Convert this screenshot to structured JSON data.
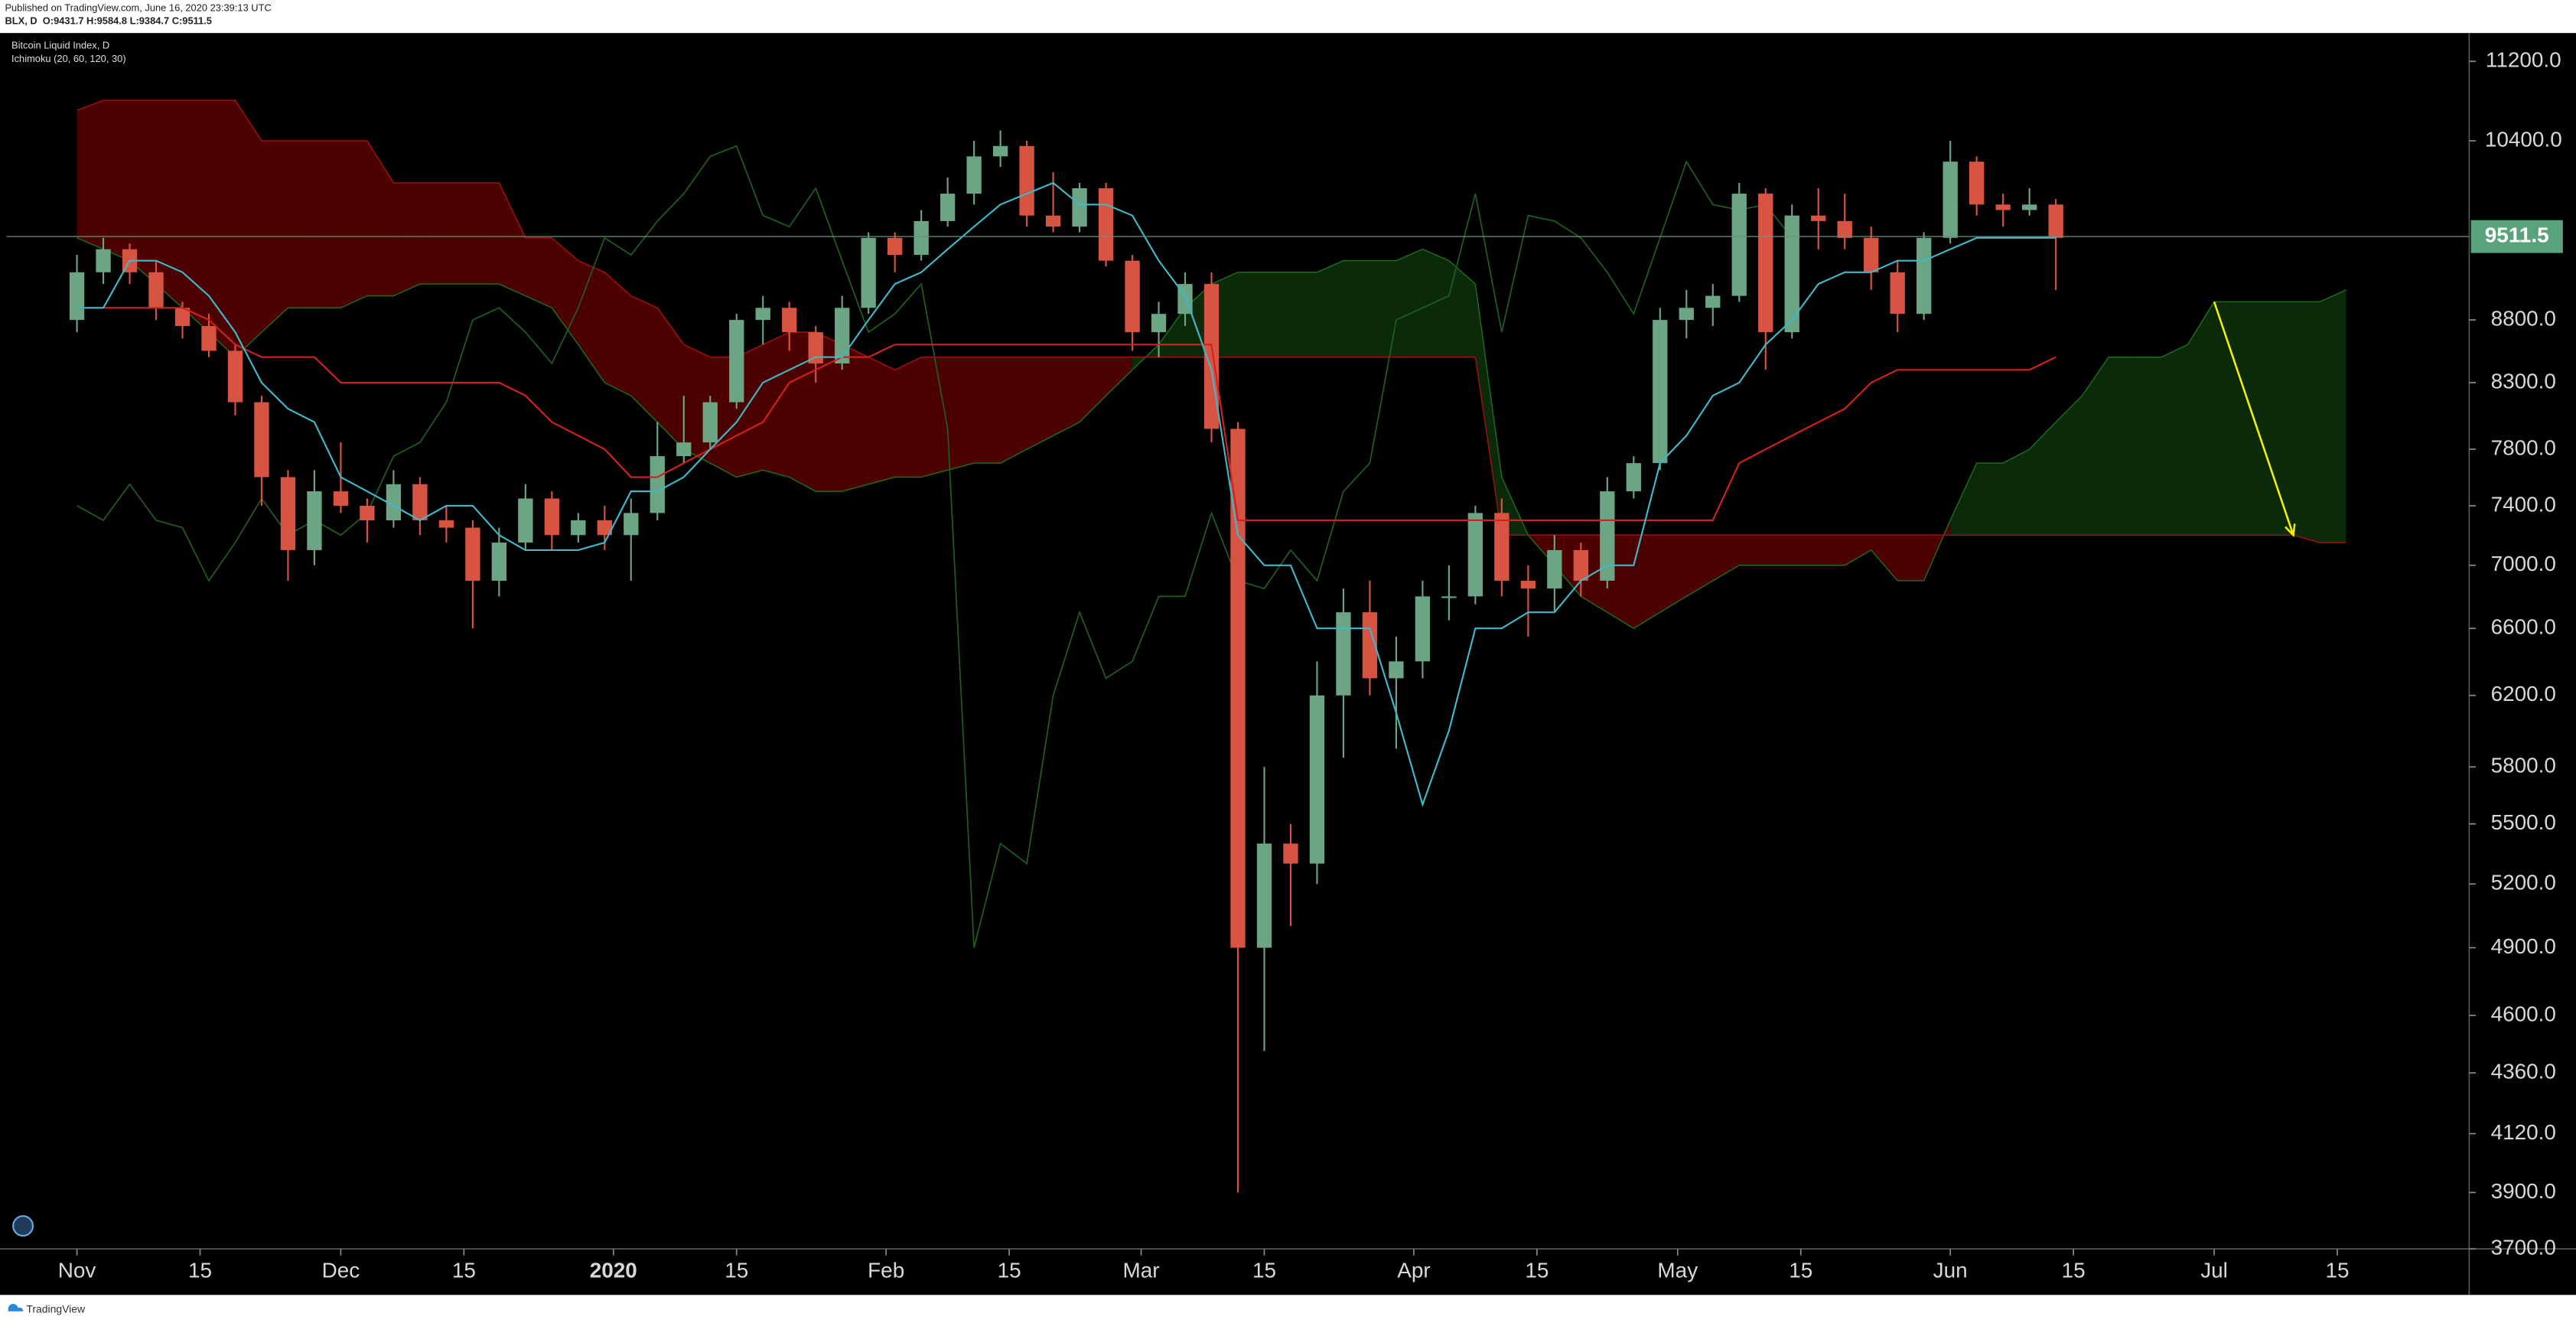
{
  "header": {
    "published": "Published on TradingView.com, June 16, 2020 23:39:13 UTC",
    "symbol_line": "BLX, D  O:9431.7 H:9584.8 L:9384.7 C:9511.5"
  },
  "footer": {
    "brand": "TradingView"
  },
  "chart_data": {
    "type": "candlestick",
    "title": "Bitcoin Liquid Index, D",
    "subtitle": "Ichimoku (20, 60, 120, 30)",
    "log": true,
    "x": [
      "2019-11-01",
      "2019-11-04",
      "2019-11-07",
      "2019-11-10",
      "2019-11-13",
      "2019-11-16",
      "2019-11-19",
      "2019-11-22",
      "2019-11-25",
      "2019-11-28",
      "2019-12-01",
      "2019-12-04",
      "2019-12-07",
      "2019-12-10",
      "2019-12-13",
      "2019-12-16",
      "2019-12-19",
      "2019-12-22",
      "2019-12-25",
      "2019-12-28",
      "2019-12-31",
      "2020-01-03",
      "2020-01-06",
      "2020-01-09",
      "2020-01-12",
      "2020-01-15",
      "2020-01-18",
      "2020-01-21",
      "2020-01-24",
      "2020-01-27",
      "2020-01-30",
      "2020-02-02",
      "2020-02-05",
      "2020-02-08",
      "2020-02-11",
      "2020-02-14",
      "2020-02-17",
      "2020-02-20",
      "2020-02-23",
      "2020-02-26",
      "2020-02-29",
      "2020-03-03",
      "2020-03-06",
      "2020-03-09",
      "2020-03-12",
      "2020-03-15",
      "2020-03-18",
      "2020-03-21",
      "2020-03-24",
      "2020-03-27",
      "2020-03-30",
      "2020-04-02",
      "2020-04-05",
      "2020-04-08",
      "2020-04-11",
      "2020-04-14",
      "2020-04-17",
      "2020-04-20",
      "2020-04-23",
      "2020-04-26",
      "2020-04-29",
      "2020-05-02",
      "2020-05-05",
      "2020-05-08",
      "2020-05-11",
      "2020-05-14",
      "2020-05-17",
      "2020-05-20",
      "2020-05-23",
      "2020-05-26",
      "2020-05-29",
      "2020-06-01",
      "2020-06-04",
      "2020-06-07",
      "2020-06-10",
      "2020-06-13",
      "2020-06-16",
      "2020-06-19",
      "2020-06-22",
      "2020-06-25",
      "2020-06-28",
      "2020-07-01",
      "2020-07-04",
      "2020-07-07",
      "2020-07-10",
      "2020-07-13",
      "2020-07-16"
    ],
    "open": [
      8800,
      9200,
      9400,
      9200,
      8900,
      8750,
      8550,
      8150,
      7600,
      7100,
      7500,
      7400,
      7300,
      7550,
      7300,
      7250,
      6900,
      7150,
      7450,
      7200,
      7300,
      7200,
      7350,
      7750,
      7850,
      8150,
      8800,
      8900,
      8700,
      8450,
      8900,
      9500,
      9350,
      9650,
      9900,
      10250,
      10350,
      9700,
      9600,
      9950,
      9300,
      8700,
      8850,
      9100,
      7950,
      4900,
      5400,
      5300,
      6200,
      6700,
      6300,
      6400,
      6800,
      6800,
      7350,
      6900,
      6850,
      7100,
      6900,
      7500,
      7700,
      8800,
      8900,
      9000,
      9900,
      8700,
      9700,
      9650,
      9500,
      9200,
      8850,
      9500,
      10200,
      9800,
      9750,
      9800,
      null,
      null,
      null,
      null,
      null,
      null,
      null,
      null,
      null,
      null,
      null
    ],
    "high": [
      9350,
      9500,
      9450,
      9300,
      8950,
      8850,
      8600,
      8200,
      7650,
      7650,
      7850,
      7450,
      7650,
      7600,
      7400,
      7300,
      7250,
      7550,
      7500,
      7350,
      7400,
      7450,
      8000,
      8200,
      8200,
      8850,
      9000,
      8950,
      8750,
      9000,
      9550,
      9550,
      9750,
      10050,
      10400,
      10500,
      10400,
      10100,
      10000,
      10000,
      9350,
      8950,
      9200,
      9200,
      8000,
      5800,
      5500,
      6400,
      6850,
      6900,
      6550,
      6900,
      7000,
      7400,
      7450,
      7000,
      7200,
      7150,
      7600,
      7750,
      8900,
      9050,
      9100,
      10000,
      9950,
      9800,
      9950,
      9900,
      9600,
      9300,
      9550,
      10400,
      10250,
      9900,
      9950,
      9850,
      null,
      null,
      null,
      null,
      null,
      null,
      null,
      null,
      null,
      null,
      null
    ],
    "low": [
      8700,
      9100,
      9100,
      8800,
      8650,
      8500,
      8050,
      7400,
      6900,
      7000,
      7350,
      7150,
      7250,
      7200,
      7150,
      6600,
      6800,
      7100,
      7100,
      7150,
      7100,
      6900,
      7300,
      7700,
      7800,
      8100,
      8600,
      8550,
      8300,
      8400,
      8850,
      9200,
      9300,
      9600,
      9800,
      10150,
      9600,
      9550,
      9550,
      9250,
      8550,
      8500,
      8750,
      7850,
      3900,
      4450,
      5000,
      5200,
      5850,
      6200,
      5900,
      6300,
      6650,
      6750,
      6800,
      6550,
      6700,
      6800,
      6850,
      7450,
      7650,
      8650,
      8750,
      8950,
      8400,
      8650,
      9400,
      9400,
      9050,
      8700,
      8800,
      9450,
      9700,
      9600,
      9700,
      9050,
      null,
      null,
      null,
      null,
      null,
      null,
      null,
      null,
      null,
      null,
      null
    ],
    "close": [
      9200,
      9400,
      9200,
      8900,
      8750,
      8550,
      8150,
      7600,
      7100,
      7500,
      7400,
      7300,
      7550,
      7300,
      7250,
      6900,
      7150,
      7450,
      7200,
      7300,
      7200,
      7350,
      7750,
      7850,
      8150,
      8800,
      8900,
      8700,
      8450,
      8900,
      9500,
      9350,
      9650,
      9900,
      10250,
      10350,
      9700,
      9600,
      9950,
      9300,
      8700,
      8850,
      9100,
      7950,
      4900,
      5400,
      5300,
      6200,
      6700,
      6300,
      6400,
      6800,
      6800,
      7350,
      6900,
      6850,
      7100,
      6900,
      7500,
      7700,
      8800,
      8900,
      9000,
      9900,
      8700,
      9700,
      9650,
      9500,
      9200,
      8850,
      9500,
      10200,
      9800,
      9750,
      9800,
      9500,
      null,
      null,
      null,
      null,
      null,
      null,
      null,
      null,
      null,
      null,
      null
    ],
    "tenkan": [
      8900,
      8900,
      9300,
      9300,
      9200,
      9000,
      8700,
      8300,
      8100,
      8000,
      7600,
      7500,
      7400,
      7300,
      7400,
      7400,
      7200,
      7100,
      7100,
      7100,
      7150,
      7500,
      7500,
      7600,
      7800,
      8000,
      8300,
      8400,
      8500,
      8500,
      8800,
      9100,
      9200,
      9400,
      9600,
      9800,
      9900,
      10000,
      9800,
      9800,
      9700,
      9300,
      9000,
      8400,
      7200,
      7000,
      7000,
      6600,
      6600,
      6600,
      6100,
      5600,
      6000,
      6600,
      6600,
      6700,
      6700,
      6900,
      7000,
      7000,
      7700,
      7900,
      8200,
      8300,
      8600,
      8800,
      9100,
      9200,
      9200,
      9300,
      9300,
      9400,
      9500,
      9500,
      9500,
      9500,
      null,
      null,
      null,
      null,
      null,
      null,
      null,
      null,
      null,
      null,
      null
    ],
    "kijun": [
      8900,
      8900,
      8900,
      8900,
      8900,
      8800,
      8600,
      8500,
      8500,
      8500,
      8300,
      8300,
      8300,
      8300,
      8300,
      8300,
      8300,
      8200,
      8000,
      7900,
      7800,
      7600,
      7600,
      7700,
      7800,
      7900,
      8000,
      8300,
      8400,
      8500,
      8500,
      8600,
      8600,
      8600,
      8600,
      8600,
      8600,
      8600,
      8600,
      8600,
      8600,
      8600,
      8600,
      8600,
      7300,
      7300,
      7300,
      7300,
      7300,
      7300,
      7300,
      7300,
      7300,
      7300,
      7300,
      7300,
      7300,
      7300,
      7300,
      7300,
      7300,
      7300,
      7300,
      7700,
      7800,
      7900,
      8000,
      8100,
      8300,
      8400,
      8400,
      8400,
      8400,
      8400,
      8400,
      8500,
      null,
      null,
      null,
      null,
      null,
      null,
      null,
      null,
      null,
      null,
      null
    ],
    "lagging": [
      7400,
      7300,
      7550,
      7300,
      7250,
      6900,
      7150,
      7450,
      7200,
      7300,
      7200,
      7350,
      7750,
      7850,
      8150,
      8800,
      8900,
      8700,
      8450,
      8900,
      9500,
      9350,
      9650,
      9900,
      10250,
      10350,
      9700,
      9600,
      9950,
      9300,
      8700,
      8850,
      9100,
      7950,
      4900,
      5400,
      5300,
      6200,
      6700,
      6300,
      6400,
      6800,
      6800,
      7350,
      6900,
      6850,
      7100,
      6900,
      7500,
      7700,
      8800,
      8900,
      9000,
      9900,
      8700,
      9700,
      9650,
      9500,
      9200,
      8850,
      9500,
      10200,
      9800,
      9750,
      9800,
      9500,
      null,
      null,
      null,
      null,
      null,
      null,
      null,
      null,
      null,
      null,
      null,
      null,
      null,
      null,
      null,
      null,
      null,
      null,
      null,
      null,
      null
    ],
    "span_a": [
      9500,
      9400,
      9300,
      9100,
      8900,
      8700,
      8500,
      8700,
      8900,
      8900,
      8900,
      9000,
      9000,
      9100,
      9100,
      9100,
      9100,
      9000,
      8900,
      8600,
      8300,
      8200,
      8000,
      7800,
      7700,
      7600,
      7650,
      7600,
      7500,
      7500,
      7550,
      7600,
      7600,
      7650,
      7700,
      7700,
      7800,
      7900,
      8000,
      8200,
      8400,
      8600,
      8900,
      9100,
      9200,
      9200,
      9200,
      9200,
      9300,
      9300,
      9300,
      9400,
      9300,
      9100,
      7600,
      7200,
      7000,
      6800,
      6700,
      6600,
      6700,
      6800,
      6900,
      7000,
      7000,
      7000,
      7000,
      7000,
      7100,
      6900,
      6900,
      7300,
      7700,
      7700,
      7800,
      8000,
      8200,
      8500,
      8500,
      8500,
      8600,
      8950,
      8950,
      8950,
      8950,
      8950,
      9050
    ],
    "span_b": [
      10700,
      10800,
      10800,
      10800,
      10800,
      10800,
      10800,
      10400,
      10400,
      10400,
      10400,
      10400,
      10000,
      10000,
      10000,
      10000,
      10000,
      9500,
      9500,
      9300,
      9200,
      9000,
      8900,
      8600,
      8500,
      8500,
      8600,
      8700,
      8700,
      8600,
      8500,
      8400,
      8500,
      8500,
      8500,
      8500,
      8500,
      8500,
      8500,
      8500,
      8500,
      8500,
      8500,
      8500,
      8500,
      8500,
      8500,
      8500,
      8500,
      8500,
      8500,
      8500,
      8500,
      8500,
      7200,
      7200,
      7200,
      7200,
      7200,
      7200,
      7200,
      7200,
      7200,
      7200,
      7200,
      7200,
      7200,
      7200,
      7200,
      7200,
      7200,
      7200,
      7200,
      7200,
      7200,
      7200,
      7200,
      7200,
      7200,
      7200,
      7200,
      7200,
      7200,
      7200,
      7200,
      7150,
      7150
    ],
    "colors": {
      "up": "#6ba583",
      "down": "#d75442",
      "tenkan": "#3fb8c9",
      "kijun": "#d32020",
      "lagging": "#1f5e1f",
      "bull_cloud": "#0a2a0a",
      "bear_cloud": "#4d0000",
      "arrow": "#f2f200",
      "last": "#5aa27c"
    },
    "arrow": {
      "x": [
        "2020-07-01",
        "2020-07-10"
      ],
      "values": [
        8950,
        7200
      ]
    },
    "last_price": 9511.5,
    "xlim": [
      "2019-10-24",
      "2020-07-30"
    ],
    "ylim": [
      3700,
      11500
    ],
    "xticks": [
      {
        "value": "2019-11-01",
        "label": "Nov"
      },
      {
        "value": "2019-11-15",
        "label": "15"
      },
      {
        "value": "2019-12-01",
        "label": "Dec"
      },
      {
        "value": "2019-12-15",
        "label": "15"
      },
      {
        "value": "2020-01-01",
        "label": "2020"
      },
      {
        "value": "2020-01-15",
        "label": "15"
      },
      {
        "value": "2020-02-01",
        "label": "Feb"
      },
      {
        "value": "2020-02-15",
        "label": "15"
      },
      {
        "value": "2020-03-01",
        "label": "Mar"
      },
      {
        "value": "2020-03-15",
        "label": "15"
      },
      {
        "value": "2020-04-01",
        "label": "Apr"
      },
      {
        "value": "2020-04-15",
        "label": "15"
      },
      {
        "value": "2020-05-01",
        "label": "May"
      },
      {
        "value": "2020-05-15",
        "label": "15"
      },
      {
        "value": "2020-06-01",
        "label": "Jun"
      },
      {
        "value": "2020-06-15",
        "label": "15"
      },
      {
        "value": "2020-07-01",
        "label": "Jul"
      },
      {
        "value": "2020-07-15",
        "label": "15"
      }
    ],
    "yticks": [
      {
        "value": 11200,
        "label": "11200.0"
      },
      {
        "value": 10400,
        "label": "10400.0"
      },
      {
        "value": 8800,
        "label": "8800.0"
      },
      {
        "value": 8300,
        "label": "8300.0"
      },
      {
        "value": 7800,
        "label": "7800.0"
      },
      {
        "value": 7400,
        "label": "7400.0"
      },
      {
        "value": 7000,
        "label": "7000.0"
      },
      {
        "value": 6600,
        "label": "6600.0"
      },
      {
        "value": 6200,
        "label": "6200.0"
      },
      {
        "value": 5800,
        "label": "5800.0"
      },
      {
        "value": 5500,
        "label": "5500.0"
      },
      {
        "value": 5200,
        "label": "5200.0"
      },
      {
        "value": 4900,
        "label": "4900.0"
      },
      {
        "value": 4600,
        "label": "4600.0"
      },
      {
        "value": 4360,
        "label": "4360.0"
      },
      {
        "value": 4120,
        "label": "4120.0"
      },
      {
        "value": 3900,
        "label": "3900.0"
      },
      {
        "value": 3700,
        "label": "3700.0"
      }
    ]
  }
}
